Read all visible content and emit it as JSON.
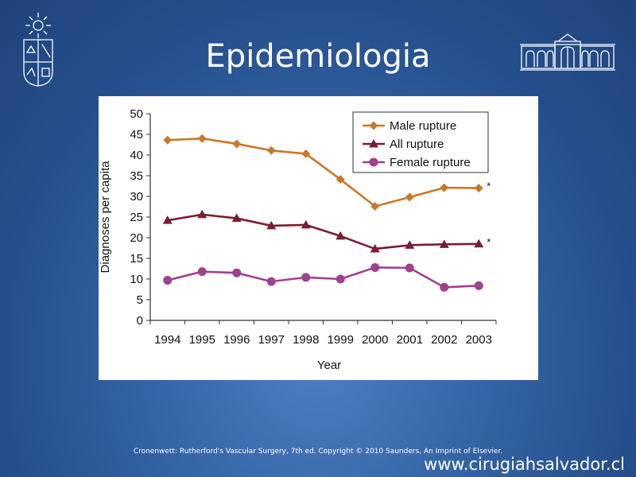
{
  "slide": {
    "title": "Epidemiologia",
    "caption": "Cronenwett: Rutherford's Vascular Surgery, 7th ed. Copyright © 2010 Saunders, An Imprint of Elsevier.",
    "website": "www.cirugiahsalvador.cl"
  },
  "chart_data": {
    "type": "line",
    "title": "",
    "xlabel": "Year",
    "ylabel": "Diagnoses per capita",
    "x": [
      "1994",
      "1995",
      "1996",
      "1997",
      "1998",
      "1999",
      "2000",
      "2001",
      "2002",
      "2003"
    ],
    "ylim": [
      0,
      50
    ],
    "yticks": [
      0,
      5,
      10,
      15,
      20,
      25,
      30,
      35,
      40,
      45,
      50
    ],
    "grid": false,
    "legend_position": "top-right",
    "series": [
      {
        "name": "Male rupture",
        "marker": "diamond",
        "color": "#c8782a",
        "values": [
          43.6,
          44.0,
          42.7,
          41.1,
          40.3,
          34.1,
          27.6,
          29.8,
          32.1,
          32.0
        ],
        "end_annotation": "*"
      },
      {
        "name": "All rupture",
        "marker": "triangle",
        "color": "#7a1c32",
        "values": [
          24.2,
          25.6,
          24.7,
          22.9,
          23.1,
          20.4,
          17.3,
          18.2,
          18.4,
          18.5
        ],
        "end_annotation": "*"
      },
      {
        "name": "Female rupture",
        "marker": "circle",
        "color": "#a0408e",
        "values": [
          9.7,
          11.8,
          11.5,
          9.4,
          10.4,
          10.0,
          12.8,
          12.7,
          8.0,
          8.4
        ],
        "end_annotation": ""
      }
    ]
  }
}
